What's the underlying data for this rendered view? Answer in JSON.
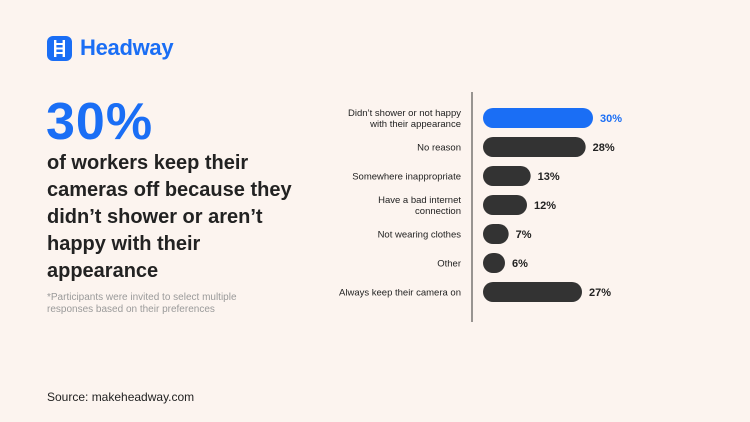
{
  "brand": {
    "name": "Headway"
  },
  "headline": {
    "stat": "30%",
    "text": "of workers keep their cameras off because they didn’t shower or aren’t happy with their appearance"
  },
  "footnote": "*Participants were invited to select multiple responses based on their preferences",
  "source": "Source: makeheadway.com",
  "colors": {
    "accent": "#1a6ef5",
    "bar": "#333333",
    "background": "#fcf4ef",
    "axis": "#333333"
  },
  "chart_data": {
    "type": "bar",
    "orientation": "horizontal",
    "categories": [
      [
        "Didn’t shower or not happy",
        "with their appearance"
      ],
      [
        "No reason"
      ],
      [
        "Somewhere inappropriate"
      ],
      [
        "Have a bad internet",
        "connection"
      ],
      [
        "Not wearing clothes"
      ],
      [
        "Other"
      ],
      [
        "Always keep their camera on"
      ]
    ],
    "values": [
      30,
      28,
      13,
      12,
      7,
      6,
      27
    ],
    "value_labels": [
      "30%",
      "28%",
      "13%",
      "12%",
      "7%",
      "6%",
      "27%"
    ],
    "highlight_index": 0,
    "unit": "%",
    "xlim": [
      0,
      30
    ],
    "grid": false,
    "legend": "none"
  }
}
